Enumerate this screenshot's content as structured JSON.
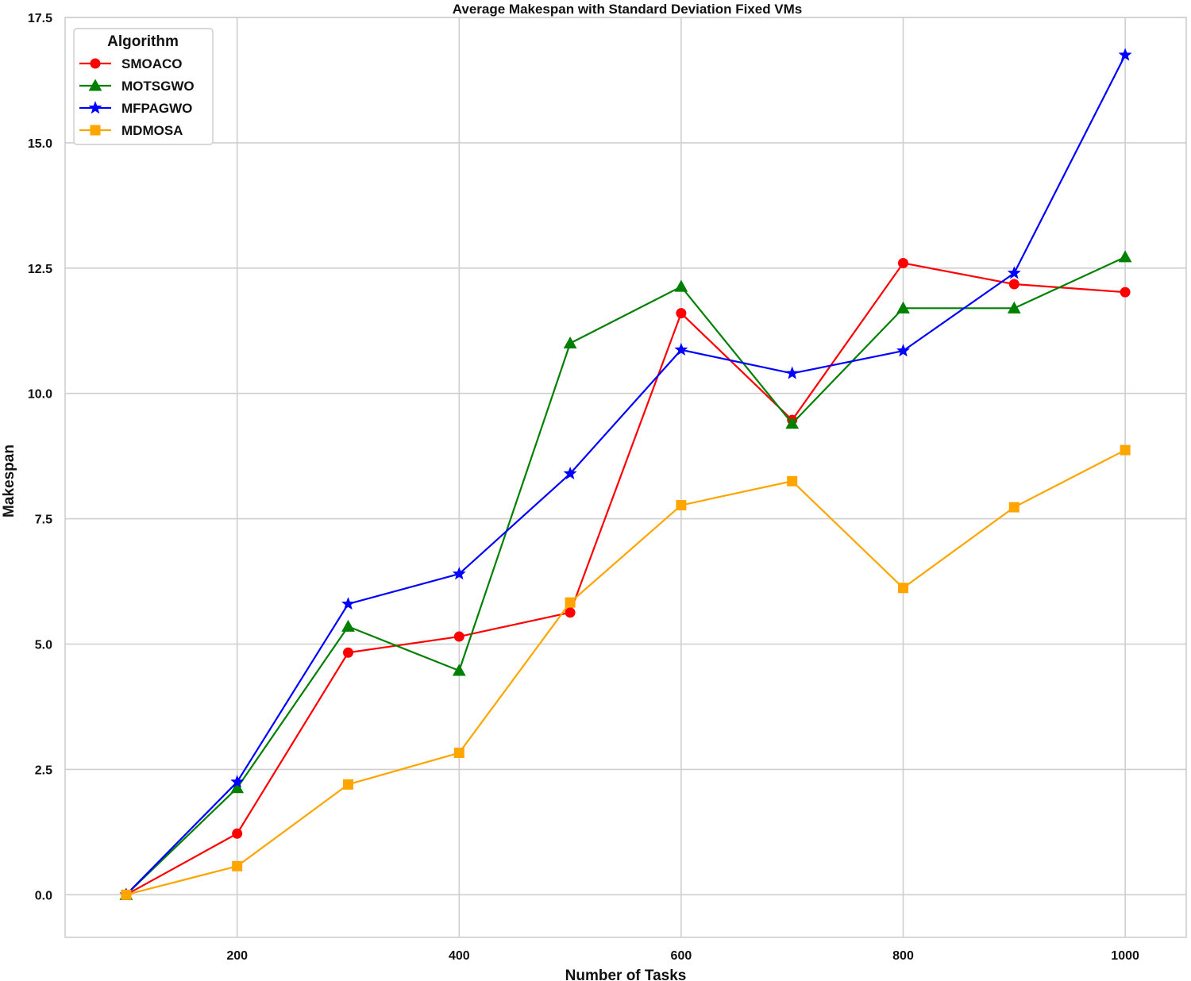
{
  "chart_data": {
    "type": "line",
    "title": "Average Makespan with Standard Deviation Fixed VMs",
    "xlabel": "Number of Tasks",
    "ylabel": "Makespan",
    "xlim": [
      45,
      1055
    ],
    "ylim": [
      -0.85,
      17.5
    ],
    "xticks": [
      200,
      400,
      600,
      800,
      1000
    ],
    "xtick_labels": [
      "200",
      "400",
      "600",
      "800",
      "1000"
    ],
    "yticks": [
      0.0,
      2.5,
      5.0,
      7.5,
      10.0,
      12.5,
      15.0,
      17.5
    ],
    "ytick_labels": [
      "0.0",
      "2.5",
      "5.0",
      "7.5",
      "10.0",
      "12.5",
      "15.0",
      "17.5"
    ],
    "grid": true,
    "legend": {
      "title": "Algorithm",
      "position": "top-left"
    },
    "x": [
      100,
      200,
      300,
      400,
      500,
      600,
      700,
      800,
      900,
      1000
    ],
    "series": [
      {
        "name": "SMOACO",
        "color": "#ff0000",
        "marker": "circle",
        "values": [
          0.0,
          1.22,
          4.83,
          5.15,
          5.63,
          11.6,
          9.47,
          12.6,
          12.18,
          12.02
        ]
      },
      {
        "name": "MOTSGWO",
        "color": "#008000",
        "marker": "triangle",
        "values": [
          0.0,
          2.13,
          5.35,
          4.47,
          11.0,
          12.13,
          9.4,
          11.7,
          11.7,
          12.72
        ]
      },
      {
        "name": "MFPAGWO",
        "color": "#0000ff",
        "marker": "star",
        "values": [
          0.0,
          2.25,
          5.8,
          6.4,
          8.4,
          10.87,
          10.4,
          10.85,
          12.4,
          16.75
        ]
      },
      {
        "name": "MDMOSA",
        "color": "#ffa500",
        "marker": "square",
        "values": [
          0.0,
          0.57,
          2.2,
          2.83,
          5.83,
          7.77,
          8.25,
          6.12,
          7.73,
          8.87
        ]
      }
    ]
  }
}
